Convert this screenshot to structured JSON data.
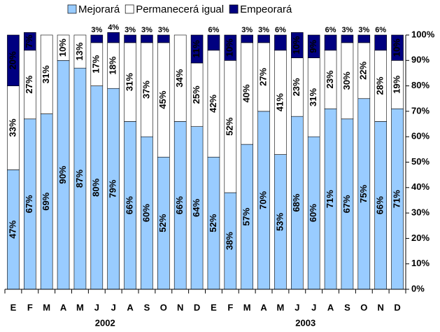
{
  "chart_data": {
    "type": "stacked_bar",
    "categories": [
      "E",
      "F",
      "M",
      "A",
      "M",
      "J",
      "J",
      "A",
      "S",
      "O",
      "N",
      "D",
      "E",
      "F",
      "M",
      "A",
      "M",
      "J",
      "J",
      "A",
      "S",
      "O",
      "N",
      "D"
    ],
    "year_labels": [
      "2002",
      "2003"
    ],
    "series": [
      {
        "name": "Mejorará",
        "color": "#99ccff",
        "label_color": "#000080",
        "values": [
          47,
          67,
          69,
          90,
          87,
          80,
          79,
          66,
          60,
          52,
          66,
          64,
          52,
          38,
          57,
          70,
          53,
          68,
          60,
          71,
          67,
          75,
          66,
          71
        ],
        "value_labels": [
          "47%",
          "67%",
          "69%",
          "90%",
          "87%",
          "80%",
          "79%",
          "66%",
          "60%",
          "52%",
          "66%",
          "64%",
          "52%",
          "38%",
          "57%",
          "70%",
          "53%",
          "68%",
          "60%",
          "71%",
          "67%",
          "75%",
          "66%",
          "71%"
        ]
      },
      {
        "name": "Permanecerá igual",
        "color": "#ffffff",
        "label_color": "#000080",
        "values": [
          33,
          27,
          31,
          10,
          13,
          17,
          18,
          31,
          37,
          45,
          34,
          25,
          42,
          52,
          40,
          27,
          41,
          23,
          31,
          23,
          30,
          22,
          28,
          19
        ],
        "value_labels": [
          "33%",
          "27%",
          "31%",
          "10%",
          "13%",
          "17%",
          "18%",
          "31%",
          "37%",
          "45%",
          "34%",
          "25%",
          "42%",
          "52%",
          "40%",
          "27%",
          "41%",
          "23%",
          "31%",
          "23%",
          "30%",
          "22%",
          "28%",
          "19%"
        ]
      },
      {
        "name": "Empeorará",
        "color": "#000080",
        "label_color": "#ffffff",
        "values": [
          20,
          7,
          0,
          0,
          0,
          3,
          4,
          3,
          3,
          3,
          0,
          11,
          6,
          10,
          3,
          3,
          6,
          10,
          9,
          6,
          3,
          3,
          6,
          10
        ],
        "value_labels": [
          "20%",
          "7%",
          null,
          null,
          null,
          "3%",
          "4%",
          "3%",
          "3%",
          "3%",
          null,
          "11%",
          "6%",
          "10%",
          "3%",
          "3%",
          "6%",
          "10%",
          "9%",
          "6%",
          "3%",
          "3%",
          "6%",
          "10%"
        ]
      }
    ],
    "ylim": [
      0,
      100
    ],
    "yticks": [
      {
        "value": 0,
        "label": "0%"
      },
      {
        "value": 10,
        "label": "10%"
      },
      {
        "value": 20,
        "label": "20%"
      },
      {
        "value": 30,
        "label": "30%"
      },
      {
        "value": 40,
        "label": "40%"
      },
      {
        "value": 50,
        "label": "50%"
      },
      {
        "value": 60,
        "label": "60%"
      },
      {
        "value": 70,
        "label": "70%"
      },
      {
        "value": 80,
        "label": "80%"
      },
      {
        "value": 90,
        "label": "90%"
      },
      {
        "value": 100,
        "label": "100%"
      }
    ],
    "legend": "top"
  }
}
